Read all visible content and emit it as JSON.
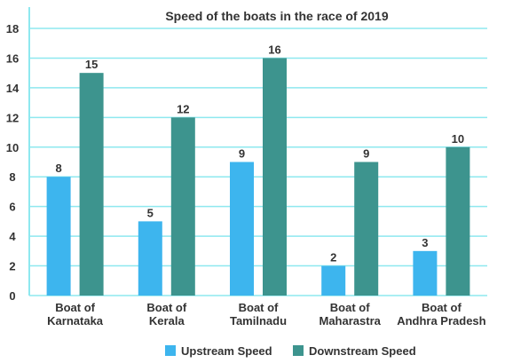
{
  "chart_data": {
    "type": "bar",
    "title": "Speed of the boats in the race of 2019",
    "categories": [
      [
        "Boat of",
        "Karnataka"
      ],
      [
        "Boat of",
        "Kerala"
      ],
      [
        "Boat of",
        "Tamilnadu"
      ],
      [
        "Boat of",
        "Maharastra"
      ],
      [
        "Boat of",
        "Andhra Pradesh"
      ]
    ],
    "series": [
      {
        "name": "Upstream Speed",
        "color": "#3db5ee",
        "values": [
          8,
          5,
          9,
          2,
          3
        ]
      },
      {
        "name": "Downstream Speed",
        "color": "#3d948e",
        "values": [
          15,
          12,
          16,
          9,
          10
        ]
      }
    ],
    "ylim": [
      0,
      18
    ],
    "yticks": [
      0,
      2,
      4,
      6,
      8,
      10,
      12,
      14,
      16,
      18
    ],
    "grid": true,
    "grid_color": "#8ee8ef",
    "legend": "bottom-center"
  }
}
